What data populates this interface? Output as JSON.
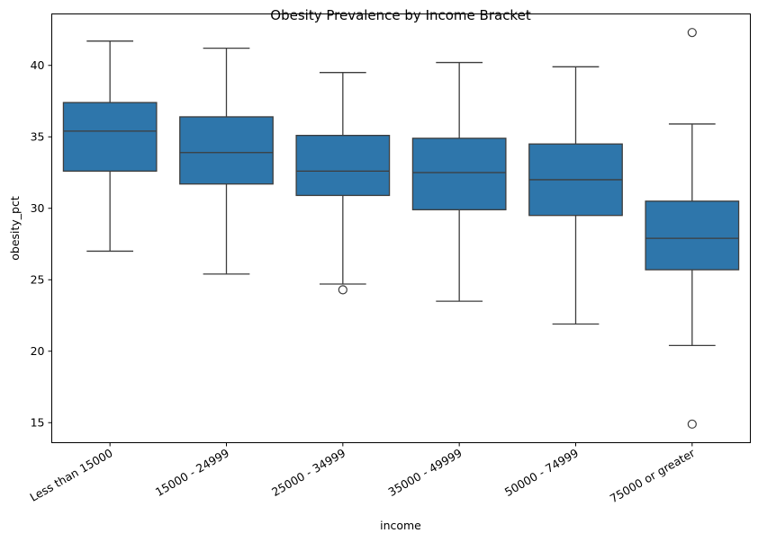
{
  "chart_data": {
    "type": "box",
    "title": "Obesity Prevalence by Income Bracket",
    "xlabel": "income",
    "ylabel": "obesity_pct",
    "ylim": [
      13.6,
      43.6
    ],
    "yticks": [
      15,
      20,
      25,
      30,
      35,
      40
    ],
    "grid": false,
    "legend": "none",
    "box_color": "#2e76ab",
    "line_color": "#3d3d3d",
    "categories": [
      "Less than 15000",
      "15000 - 24999",
      "25000 - 34999",
      "35000 - 49999",
      "50000 - 74999",
      "75000 or greater"
    ],
    "boxes": [
      {
        "whisker_low": 27.0,
        "q1": 32.6,
        "median": 35.4,
        "q3": 37.4,
        "whisker_high": 41.7,
        "outliers": []
      },
      {
        "whisker_low": 25.4,
        "q1": 31.7,
        "median": 33.9,
        "q3": 36.4,
        "whisker_high": 41.2,
        "outliers": []
      },
      {
        "whisker_low": 24.7,
        "q1": 30.9,
        "median": 32.6,
        "q3": 35.1,
        "whisker_high": 39.5,
        "outliers": [
          24.3
        ]
      },
      {
        "whisker_low": 23.5,
        "q1": 29.9,
        "median": 32.5,
        "q3": 34.9,
        "whisker_high": 40.2,
        "outliers": []
      },
      {
        "whisker_low": 21.9,
        "q1": 29.5,
        "median": 32.0,
        "q3": 34.5,
        "whisker_high": 39.9,
        "outliers": []
      },
      {
        "whisker_low": 20.4,
        "q1": 25.7,
        "median": 27.9,
        "q3": 30.5,
        "whisker_high": 35.9,
        "outliers": [
          42.3,
          14.9
        ]
      }
    ]
  }
}
